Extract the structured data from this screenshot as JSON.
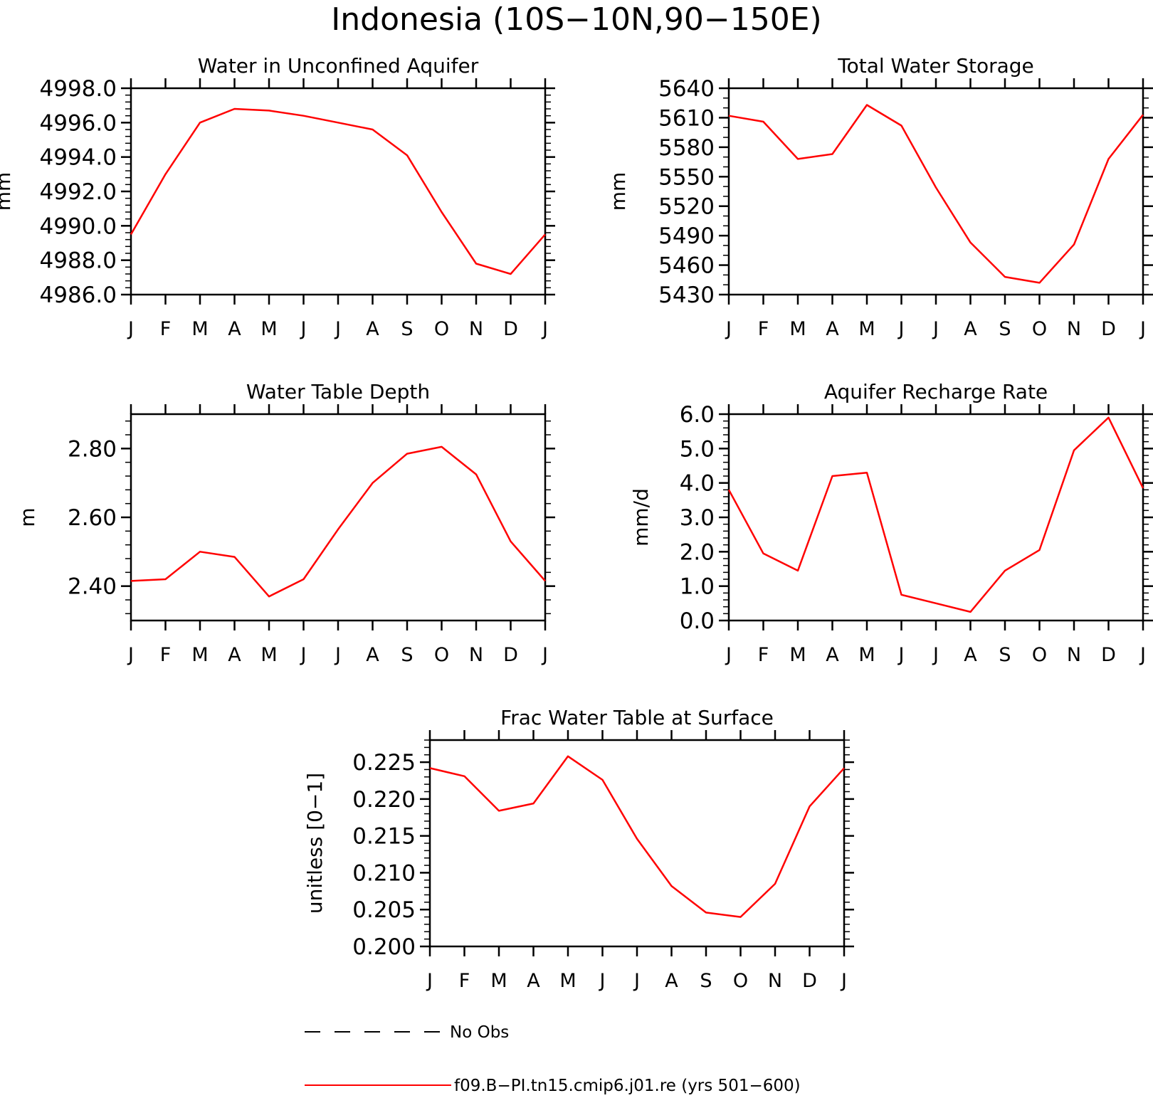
{
  "page_title": "Indonesia (10S−10N,90−150E)",
  "months": [
    "J",
    "F",
    "M",
    "A",
    "M",
    "J",
    "J",
    "A",
    "S",
    "O",
    "N",
    "D",
    "J"
  ],
  "legend": {
    "items": [
      {
        "label": "No Obs",
        "style": "dashed",
        "color": "#000000"
      },
      {
        "label": "f09.B−PI.tn15.cmip6.j01.re (yrs 501−600)",
        "style": "solid",
        "color": "#ff0000"
      }
    ]
  },
  "chart_data": [
    {
      "type": "line",
      "title": "Water in Unconfined Aquifer",
      "ylabel": "mm",
      "ylim": [
        4986.0,
        4998.0
      ],
      "yticks": [
        "4986.0",
        "4988.0",
        "4990.0",
        "4992.0",
        "4994.0",
        "4996.0",
        "4998.0"
      ],
      "series": [
        {
          "color": "#ff0000",
          "values": [
            4989.5,
            4993.0,
            4996.0,
            4996.8,
            4996.7,
            4996.4,
            4996.0,
            4995.6,
            4994.1,
            4990.8,
            4987.8,
            4987.2,
            4989.5
          ]
        }
      ]
    },
    {
      "type": "line",
      "title": "Total Water Storage",
      "ylabel": "mm",
      "ylim": [
        5430,
        5640
      ],
      "yticks": [
        "5430",
        "5460",
        "5490",
        "5520",
        "5550",
        "5580",
        "5610",
        "5640"
      ],
      "series": [
        {
          "color": "#ff0000",
          "values": [
            5612,
            5606,
            5568,
            5573,
            5623,
            5602,
            5539,
            5483,
            5448,
            5442,
            5481,
            5568,
            5613
          ]
        }
      ]
    },
    {
      "type": "line",
      "title": "Water Table Depth",
      "ylabel": "m",
      "ylim": [
        2.3,
        2.9
      ],
      "yticks": [
        "2.40",
        "2.60",
        "2.80"
      ],
      "series": [
        {
          "color": "#ff0000",
          "values": [
            2.415,
            2.42,
            2.5,
            2.485,
            2.37,
            2.42,
            2.565,
            2.7,
            2.785,
            2.805,
            2.725,
            2.53,
            2.415
          ]
        }
      ]
    },
    {
      "type": "line",
      "title": "Aquifer Recharge Rate",
      "ylabel": "mm/d",
      "ylim": [
        0.0,
        6.0
      ],
      "yticks": [
        "0.0",
        "1.0",
        "2.0",
        "3.0",
        "4.0",
        "5.0",
        "6.0"
      ],
      "series": [
        {
          "color": "#ff0000",
          "values": [
            3.8,
            1.95,
            1.45,
            4.2,
            4.3,
            0.75,
            0.5,
            0.25,
            1.45,
            2.05,
            4.95,
            5.9,
            3.85
          ]
        }
      ]
    },
    {
      "type": "line",
      "title": "Frac Water Table at Surface",
      "ylabel": "unitless [0−1]",
      "ylim": [
        0.2,
        0.228
      ],
      "yticks": [
        "0.200",
        "0.205",
        "0.210",
        "0.215",
        "0.220",
        "0.225"
      ],
      "series": [
        {
          "color": "#ff0000",
          "values": [
            0.2242,
            0.2231,
            0.2184,
            0.2194,
            0.2258,
            0.2226,
            0.2146,
            0.2082,
            0.2046,
            0.204,
            0.2085,
            0.219,
            0.2242
          ]
        }
      ]
    }
  ]
}
